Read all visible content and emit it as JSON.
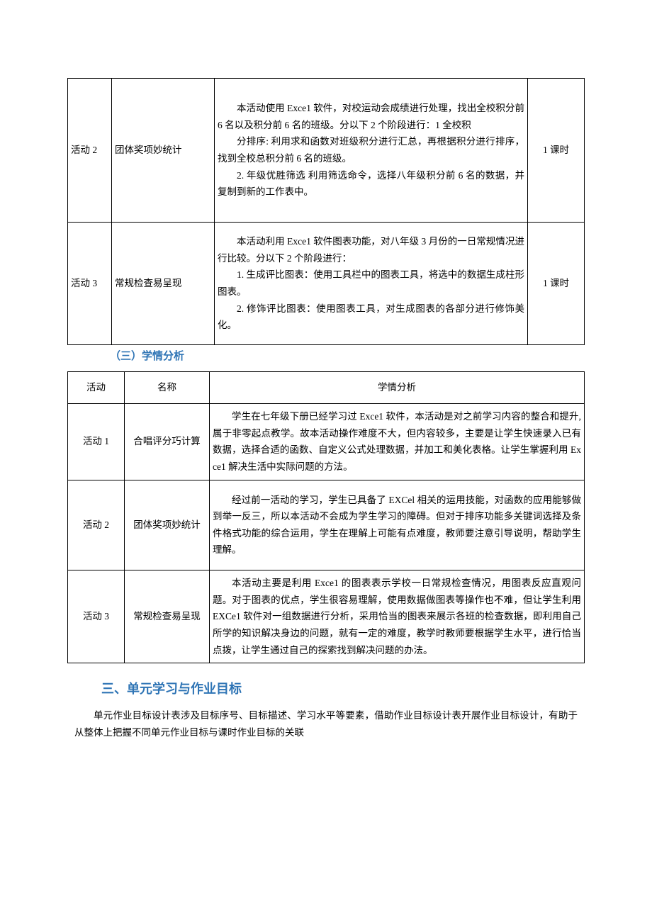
{
  "table1": {
    "rows": [
      {
        "activity": "活动 2",
        "name": "团体奖项妙统计",
        "desc_p1": "本活动使用 Exce1 软件，对校运动会成绩进行处理，找出全校积分前 6 名以及积分前 6 名的班级。分以下 2 个阶段进行：1 全校积",
        "desc_p2": "分排序: 利用求和函数对班级积分进行汇总，再根据积分进行排序，找到全校总积分前 6 名的班级。",
        "desc_p3": "2. 年级优胜筛选 利用筛选命令，选择八年级积分前 6 名的数据，并复制到新的工作表中。",
        "hours": "1 课时"
      },
      {
        "activity": "活动 3",
        "name": "常规检查易呈现",
        "desc_p1": "本活动利用 Exce1 软件图表功能，对八年级 3 月份的一日常规情况进行比较。分以下 2 个阶段进行：",
        "desc_p2": "1. 生成评比图表：使用工具栏中的图表工具，将选中的数据生成柱形图表。",
        "desc_p3": "2. 修饰评比图表：使用图表工具，对生成图表的各部分进行修饰美化。",
        "hours": "1 课时"
      }
    ]
  },
  "subheading": "（三）学情分析",
  "table2": {
    "headers": {
      "c1": "活动",
      "c2": "名称",
      "c3": "学情分析"
    },
    "rows": [
      {
        "activity": "活动 1",
        "name": "合唱评分巧计算",
        "analysis": "学生在七年级下册已经学习过 Exce1 软件，本活动是对之前学习内容的整合和提升, 属于非零起点教学。故本活动操作难度不大，但内容较多，主要是让学生快速录入已有数据，选择合适的函数、自定义公式处理数据，并加工和美化表格。让学生掌握利用 Exce1 解决生活中实际问题的方法。"
      },
      {
        "activity": "活动 2",
        "name": "团体奖项妙统计",
        "analysis": "经过前一活动的学习，学生已具备了 EXCel 相关的运用技能，对函数的应用能够做到举一反三，所以本活动不会成为学生学习的障碍。但对于排序功能多关键词选择及条件格式功能的综合运用，学生在理解上可能有点难度，教师要注意引导说明，帮助学生理解。"
      },
      {
        "activity": "活动 3",
        "name": "常规检查易呈现",
        "analysis": "本活动主要是利用 Exce1 的图表表示学校一日常规检查情况，用图表反应直观问题。对于图表的优点，学生很容易理解，使用数据做图表等操作也不难，但让学生利用 EXCe1 软件对一组数据进行分析，采用恰当的图表来展示各班的检查数据，即利用自己所学的知识解决身边的问题，就有一定的难度，教学时教师要根据学生水平，进行恰当点拨，让学生通过自己的探索找到解决问题的办法。"
      }
    ]
  },
  "heading2": "三、单元学习与作业目标",
  "paragraph": "单元作业目标设计表涉及目标序号、目标描述、学习水平等要素，借助作业目标设计表开展作业目标设计，有助于从整体上把握不同单元作业目标与课时作业目标的关联"
}
